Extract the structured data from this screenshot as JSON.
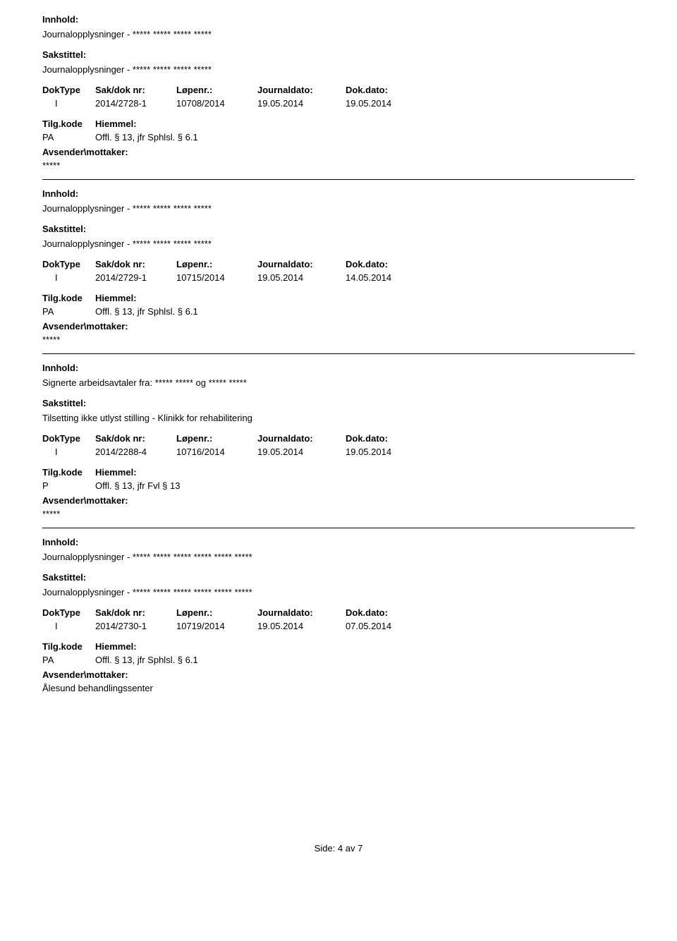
{
  "labels": {
    "innhold": "Innhold:",
    "sakstittel": "Sakstittel:",
    "doktype": "DokType",
    "saknr": "Sak/dok nr:",
    "lopenr": "Løpenr.:",
    "journaldato": "Journaldato:",
    "dokdato": "Dok.dato:",
    "tilgkode": "Tilg.kode",
    "hiemmel": "Hiemmel:",
    "avsender": "Avsender\\mottaker:"
  },
  "entries": [
    {
      "innhold": "Journalopplysninger - ***** ***** ***** *****",
      "sakstittel": "Journalopplysninger - ***** ***** ***** *****",
      "doktype": "I",
      "saknr": "2014/2728-1",
      "lopenr": "10708/2014",
      "journaldato": "19.05.2014",
      "dokdato": "19.05.2014",
      "tilgkode": "PA",
      "hiemmel": "Offl. § 13, jfr Sphlsl. § 6.1",
      "avsender": "*****"
    },
    {
      "innhold": "Journalopplysninger - ***** ***** ***** *****",
      "sakstittel": "Journalopplysninger - ***** ***** ***** *****",
      "doktype": "I",
      "saknr": "2014/2729-1",
      "lopenr": "10715/2014",
      "journaldato": "19.05.2014",
      "dokdato": "14.05.2014",
      "tilgkode": "PA",
      "hiemmel": "Offl. § 13, jfr Sphlsl. § 6.1",
      "avsender": "*****"
    },
    {
      "innhold": "Signerte arbeidsavtaler fra: ***** ***** og ***** *****",
      "sakstittel": "Tilsetting ikke utlyst stilling - Klinikk for rehabilitering",
      "doktype": "I",
      "saknr": "2014/2288-4",
      "lopenr": "10716/2014",
      "journaldato": "19.05.2014",
      "dokdato": "19.05.2014",
      "tilgkode": "P",
      "hiemmel": "Offl. § 13, jfr Fvl § 13",
      "avsender": "*****"
    },
    {
      "innhold": "Journalopplysninger - ***** ***** ***** ***** ***** *****",
      "sakstittel": "Journalopplysninger - ***** ***** ***** ***** ***** *****",
      "doktype": "I",
      "saknr": "2014/2730-1",
      "lopenr": "10719/2014",
      "journaldato": "19.05.2014",
      "dokdato": "07.05.2014",
      "tilgkode": "PA",
      "hiemmel": "Offl. § 13, jfr Sphlsl. § 6.1",
      "avsender": "Ålesund behandlingssenter"
    }
  ],
  "footer": "Side: 4 av 7"
}
